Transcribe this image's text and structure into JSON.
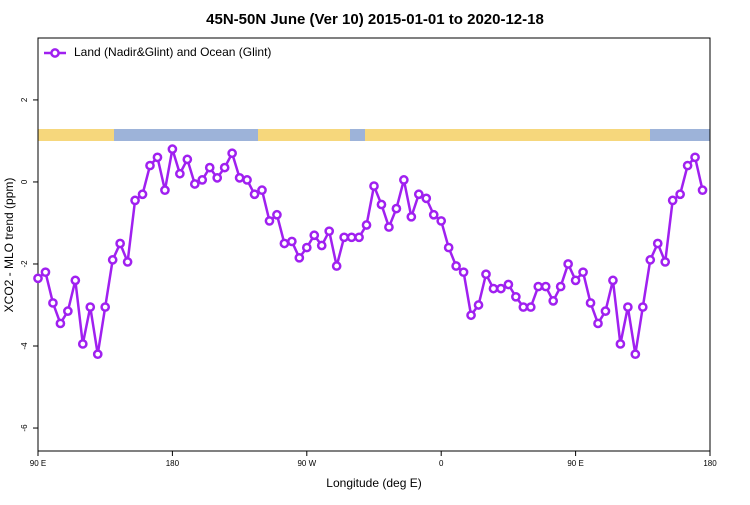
{
  "chart_data": {
    "type": "line",
    "title": "45N-50N June (Ver 10)   2015-01-01 to 2020-12-18",
    "x_label": "Longitude (deg E)",
    "y_label": "XCO2 - MLO trend (ppm)",
    "x": [
      90,
      95,
      100,
      105,
      110,
      115,
      120,
      125,
      130,
      135,
      140,
      145,
      150,
      155,
      160,
      165,
      170,
      175,
      180,
      185,
      190,
      195,
      200,
      205,
      210,
      215,
      220,
      225,
      230,
      235,
      240,
      245,
      250,
      255,
      260,
      265,
      270,
      275,
      280,
      285,
      290,
      295,
      300,
      305,
      310,
      315,
      320,
      325,
      330,
      335,
      340,
      345,
      350,
      355,
      360,
      365,
      370,
      375,
      380,
      385,
      390,
      395,
      400,
      405,
      410,
      415,
      420,
      425,
      430,
      435,
      440,
      445,
      450,
      455,
      460,
      465,
      470,
      475,
      480,
      485,
      490,
      495,
      500,
      505,
      510,
      515,
      520,
      525,
      530,
      535
    ],
    "series": [
      {
        "name": "Land (Nadir&Glint) and Ocean (Glint)",
        "color": "#a020f0",
        "values": [
          -2.35,
          -2.2,
          -2.95,
          -3.45,
          -3.15,
          -2.4,
          -3.95,
          -3.05,
          -4.2,
          -3.05,
          -1.9,
          -1.5,
          -1.95,
          -0.45,
          -0.3,
          0.4,
          0.6,
          -0.2,
          0.8,
          0.2,
          0.55,
          -0.05,
          0.05,
          0.35,
          0.1,
          0.35,
          0.7,
          0.1,
          0.05,
          -0.3,
          -0.2,
          -0.95,
          -0.8,
          -1.5,
          -1.45,
          -1.85,
          -1.6,
          -1.3,
          -1.55,
          -1.2,
          -2.05,
          -1.35,
          -1.35,
          -1.35,
          -1.05,
          -0.1,
          -0.55,
          -1.1,
          -0.65,
          0.05,
          -0.85,
          -0.3,
          -0.4,
          -0.8,
          -0.95,
          -1.6,
          -2.05,
          -2.2,
          -3.25,
          -3.0,
          -2.25,
          -2.6,
          -2.6,
          -2.5,
          -2.8,
          -3.05,
          -3.05,
          -2.55,
          -2.55,
          -2.9,
          -2.55,
          -2.0,
          -2.4,
          -2.2,
          -2.95,
          -3.45,
          -3.15,
          -2.4,
          -3.95,
          -3.05,
          -4.2,
          -3.05,
          -1.9,
          -1.5,
          -1.95,
          -0.45,
          -0.3,
          0.4,
          0.6,
          -0.2
        ]
      }
    ],
    "xlim": [
      90,
      540
    ],
    "xticks": [
      {
        "value": 90,
        "label": "90 E"
      },
      180,
      {
        "value": 270,
        "label": "90 W"
      },
      {
        "value": 360,
        "label": "0"
      },
      {
        "value": 450,
        "label": "90 E"
      },
      {
        "value": 540,
        "label": "180"
      }
    ],
    "ylim": [
      -6.56,
      3.51
    ],
    "yticks": [
      -6,
      -4,
      -2,
      0,
      2
    ],
    "legend": "top-left"
  }
}
